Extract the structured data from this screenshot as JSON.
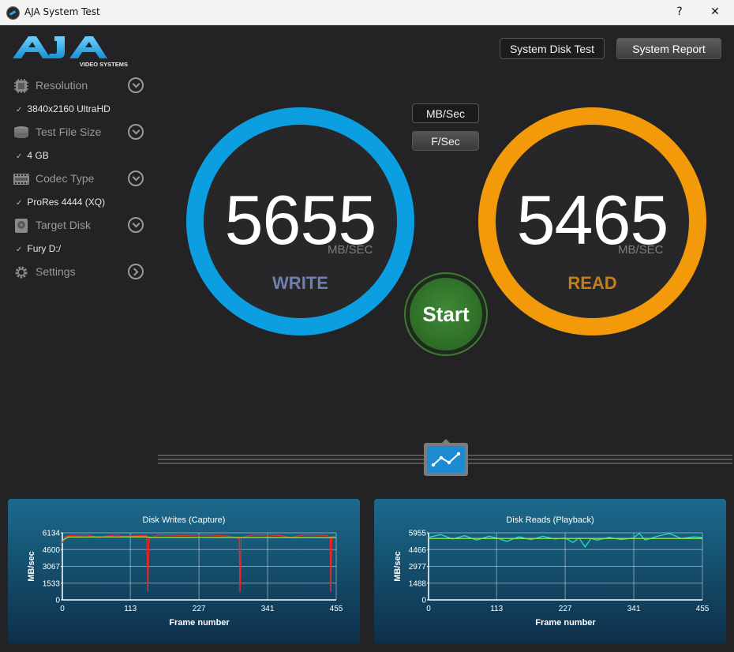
{
  "window": {
    "title": "AJA System Test",
    "help": "?",
    "minimize": "—",
    "close": "✕"
  },
  "logo": {
    "brand": "AJA",
    "tagline": "VIDEO SYSTEMS"
  },
  "sidebar": {
    "items": [
      {
        "label": "Resolution",
        "value": "3840x2160 UltraHD"
      },
      {
        "label": "Test File Size",
        "value": "4 GB"
      },
      {
        "label": "Codec Type",
        "value": "ProRes 4444 (XQ)"
      },
      {
        "label": "Target Disk",
        "value": "Fury D:/"
      },
      {
        "label": "Settings"
      }
    ],
    "check": "✓"
  },
  "toolbar": {
    "disk_test": "System Disk Test",
    "report": "System Report"
  },
  "units": {
    "mbsec": "MB/Sec",
    "fsec": "F/Sec"
  },
  "write": {
    "value": "5655",
    "unit": "MB/SEC",
    "label": "WRITE"
  },
  "read": {
    "value": "5465",
    "unit": "MB/SEC",
    "label": "READ"
  },
  "start": {
    "label": "Start"
  },
  "colors": {
    "write_ring": "#0b9ee0",
    "read_ring": "#f39a0b",
    "write_label": "#6f7fb0",
    "read_label": "#c47e14",
    "start": "#2f6e27"
  },
  "chart_data": [
    {
      "type": "line",
      "title": "Disk Writes (Capture)",
      "xlabel": "Frame number",
      "ylabel": "MB/sec",
      "xticks": [
        0,
        113,
        227,
        341,
        455
      ],
      "yticks": [
        0,
        1533,
        3067,
        4600,
        6134
      ],
      "xlim": [
        0,
        455
      ],
      "ylim": [
        0,
        6134
      ],
      "series": [
        {
          "color": "#ff2020",
          "x": [
            0,
            5,
            15,
            40,
            60,
            90,
            100,
            140,
            141,
            142,
            143,
            144,
            160,
            200,
            240,
            280,
            294,
            295,
            296,
            297,
            320,
            360,
            380,
            400,
            440,
            445,
            446,
            447,
            448,
            455
          ],
          "y": [
            5200,
            5800,
            5900,
            5950,
            5700,
            5950,
            5800,
            5900,
            4200,
            700,
            4000,
            5600,
            5950,
            5900,
            5950,
            5800,
            5600,
            700,
            2500,
            5700,
            5950,
            5900,
            5700,
            5950,
            5900,
            5600,
            700,
            4500,
            5800,
            5800
          ]
        },
        {
          "color": "#9be04a",
          "x": [
            0,
            10,
            140,
            145,
            455
          ],
          "y": [
            5450,
            5750,
            5760,
            5720,
            5700
          ]
        }
      ]
    },
    {
      "type": "line",
      "title": "Disk Reads (Playback)",
      "xlabel": "Frame number",
      "ylabel": "MB/sec",
      "xticks": [
        0,
        113,
        227,
        341,
        455
      ],
      "yticks": [
        0,
        1488,
        2977,
        4466,
        5955
      ],
      "xlim": [
        0,
        455
      ],
      "ylim": [
        0,
        5955
      ],
      "series": [
        {
          "color": "#20e0c0",
          "x": [
            0,
            20,
            40,
            60,
            80,
            100,
            113,
            130,
            150,
            170,
            190,
            210,
            227,
            240,
            250,
            260,
            270,
            280,
            300,
            320,
            340,
            350,
            360,
            380,
            400,
            420,
            440,
            455
          ],
          "y": [
            5550,
            5800,
            5400,
            5700,
            5300,
            5650,
            5500,
            5200,
            5600,
            5350,
            5650,
            5400,
            5500,
            5100,
            5500,
            4700,
            5450,
            5300,
            5550,
            5350,
            5500,
            5900,
            5300,
            5650,
            5900,
            5450,
            5600,
            5550
          ]
        },
        {
          "color": "#9be04a",
          "x": [
            0,
            455
          ],
          "y": [
            5450,
            5450
          ]
        }
      ]
    }
  ]
}
